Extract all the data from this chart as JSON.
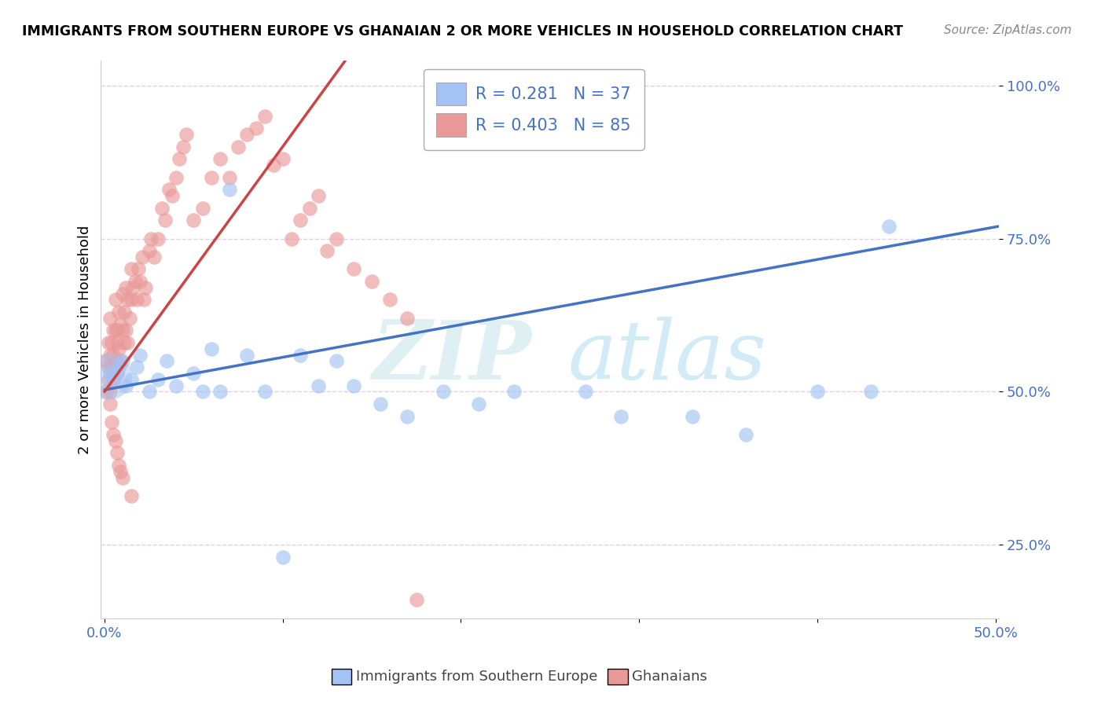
{
  "title": "IMMIGRANTS FROM SOUTHERN EUROPE VS GHANAIAN 2 OR MORE VEHICLES IN HOUSEHOLD CORRELATION CHART",
  "source": "Source: ZipAtlas.com",
  "ylabel": "2 or more Vehicles in Household",
  "xlim": [
    -0.002,
    0.502
  ],
  "ylim": [
    0.13,
    1.04
  ],
  "xticks": [
    0.0,
    0.1,
    0.2,
    0.3,
    0.4,
    0.5
  ],
  "xticklabels": [
    "0.0%",
    "",
    "",
    "",
    "",
    "50.0%"
  ],
  "yticks": [
    0.25,
    0.5,
    0.75,
    1.0
  ],
  "yticklabels": [
    "25.0%",
    "50.0%",
    "75.0%",
    "100.0%"
  ],
  "blue_color": "#a4c2f4",
  "pink_color": "#ea9999",
  "trend_blue": "#4472c4",
  "trend_pink": "#cc4444",
  "tick_color": "#4472c4",
  "grid_color": "#e0d0e8",
  "legend_label_blue": "Immigrants from Southern Europe",
  "legend_label_pink": "Ghanaians",
  "watermark_zip": "ZIP",
  "watermark_atlas": "atlas",
  "blue_x": [
    0.003,
    0.005,
    0.007,
    0.008,
    0.01,
    0.012,
    0.015,
    0.018,
    0.02,
    0.025,
    0.03,
    0.035,
    0.04,
    0.05,
    0.055,
    0.06,
    0.065,
    0.07,
    0.08,
    0.09,
    0.1,
    0.11,
    0.12,
    0.13,
    0.14,
    0.155,
    0.17,
    0.19,
    0.21,
    0.23,
    0.27,
    0.29,
    0.33,
    0.36,
    0.4,
    0.43,
    0.44
  ],
  "blue_y": [
    0.53,
    0.52,
    0.53,
    0.54,
    0.55,
    0.51,
    0.52,
    0.54,
    0.56,
    0.5,
    0.52,
    0.55,
    0.51,
    0.53,
    0.5,
    0.57,
    0.5,
    0.83,
    0.56,
    0.5,
    0.23,
    0.56,
    0.51,
    0.55,
    0.51,
    0.48,
    0.46,
    0.5,
    0.48,
    0.5,
    0.5,
    0.46,
    0.46,
    0.43,
    0.5,
    0.5,
    0.77
  ],
  "pink_x": [
    0.001,
    0.001,
    0.002,
    0.002,
    0.002,
    0.003,
    0.003,
    0.003,
    0.004,
    0.004,
    0.005,
    0.005,
    0.005,
    0.006,
    0.006,
    0.006,
    0.007,
    0.007,
    0.007,
    0.008,
    0.008,
    0.009,
    0.009,
    0.01,
    0.01,
    0.011,
    0.011,
    0.012,
    0.012,
    0.013,
    0.013,
    0.014,
    0.015,
    0.015,
    0.016,
    0.017,
    0.018,
    0.019,
    0.02,
    0.021,
    0.022,
    0.023,
    0.025,
    0.026,
    0.028,
    0.03,
    0.032,
    0.034,
    0.036,
    0.038,
    0.04,
    0.042,
    0.044,
    0.046,
    0.05,
    0.055,
    0.06,
    0.065,
    0.07,
    0.075,
    0.08,
    0.085,
    0.09,
    0.095,
    0.1,
    0.105,
    0.11,
    0.115,
    0.12,
    0.125,
    0.13,
    0.14,
    0.15,
    0.16,
    0.17,
    0.003,
    0.004,
    0.005,
    0.006,
    0.007,
    0.008,
    0.009,
    0.01,
    0.015,
    0.175
  ],
  "pink_y": [
    0.55,
    0.5,
    0.54,
    0.58,
    0.52,
    0.56,
    0.62,
    0.5,
    0.58,
    0.54,
    0.6,
    0.56,
    0.52,
    0.6,
    0.65,
    0.55,
    0.58,
    0.53,
    0.6,
    0.57,
    0.63,
    0.55,
    0.61,
    0.6,
    0.66,
    0.58,
    0.63,
    0.6,
    0.67,
    0.58,
    0.65,
    0.62,
    0.65,
    0.7,
    0.67,
    0.68,
    0.65,
    0.7,
    0.68,
    0.72,
    0.65,
    0.67,
    0.73,
    0.75,
    0.72,
    0.75,
    0.8,
    0.78,
    0.83,
    0.82,
    0.85,
    0.88,
    0.9,
    0.92,
    0.78,
    0.8,
    0.85,
    0.88,
    0.85,
    0.9,
    0.92,
    0.93,
    0.95,
    0.87,
    0.88,
    0.75,
    0.78,
    0.8,
    0.82,
    0.73,
    0.75,
    0.7,
    0.68,
    0.65,
    0.62,
    0.48,
    0.45,
    0.43,
    0.42,
    0.4,
    0.38,
    0.37,
    0.36,
    0.33,
    0.16
  ],
  "blue_trend_x": [
    0.0,
    0.502
  ],
  "blue_trend_y": [
    0.503,
    0.77
  ],
  "pink_trend_x": [
    0.0,
    0.135
  ],
  "pink_trend_y": [
    0.5,
    1.04
  ],
  "r_blue": "0.281",
  "n_blue": "37",
  "r_pink": "0.403",
  "n_pink": "85"
}
